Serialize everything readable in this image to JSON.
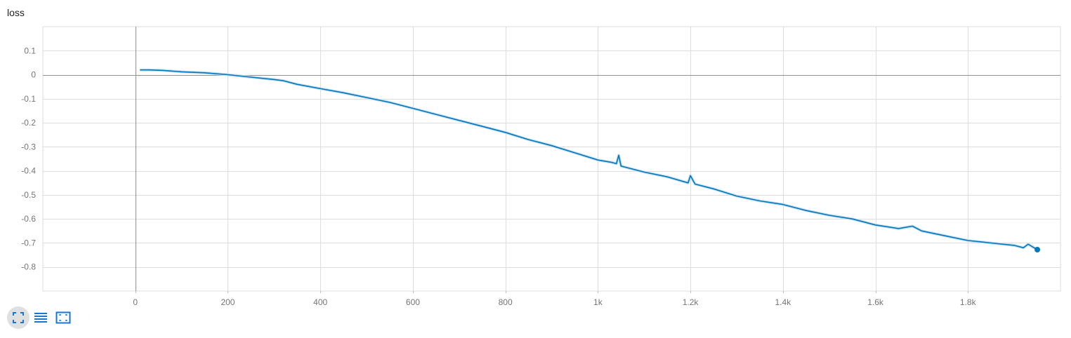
{
  "colors": {
    "line": "#0077bb",
    "line_raw": "#c6dff0",
    "grid": "#dddddd",
    "zero_axis": "#909090",
    "tick_text": "#757575",
    "toolbar_icon": "#1976d2"
  },
  "toolbar": {
    "icons": [
      "fit-domain-icon",
      "log-scale-icon",
      "selection-zoom-icon"
    ]
  },
  "chart_data": {
    "type": "line",
    "title": "loss",
    "xlabel": "",
    "ylabel": "",
    "xlim": [
      -200,
      2000
    ],
    "ylim": [
      -0.9,
      0.2
    ],
    "grid": true,
    "x_ticks": [
      0,
      200,
      400,
      600,
      800,
      1000,
      1200,
      1400,
      1600,
      1800
    ],
    "x_tick_labels": [
      "0",
      "200",
      "400",
      "600",
      "800",
      "1k",
      "1.2k",
      "1.4k",
      "1.6k",
      "1.8k"
    ],
    "y_ticks": [
      0.1,
      0,
      -0.1,
      -0.2,
      -0.3,
      -0.4,
      -0.5,
      -0.6,
      -0.7,
      -0.8
    ],
    "y_tick_labels": [
      "0.1",
      "0",
      "-0.1",
      "-0.2",
      "-0.3",
      "-0.4",
      "-0.5",
      "-0.6",
      "-0.7",
      "-0.8"
    ],
    "series": [
      {
        "x": [
          10,
          30,
          60,
          100,
          150,
          200,
          250,
          300,
          320,
          350,
          400,
          450,
          500,
          550,
          600,
          650,
          700,
          750,
          800,
          850,
          880,
          900,
          950,
          1000,
          1030,
          1040,
          1045,
          1050,
          1100,
          1150,
          1195,
          1200,
          1210,
          1250,
          1300,
          1350,
          1400,
          1450,
          1500,
          1550,
          1600,
          1650,
          1680,
          1700,
          1750,
          1800,
          1850,
          1900,
          1920,
          1930,
          1950
        ],
        "y": [
          0.02,
          0.02,
          0.018,
          0.012,
          0.008,
          0.0,
          -0.01,
          -0.02,
          -0.025,
          -0.04,
          -0.058,
          -0.075,
          -0.095,
          -0.115,
          -0.14,
          -0.165,
          -0.19,
          -0.215,
          -0.24,
          -0.27,
          -0.285,
          -0.295,
          -0.325,
          -0.355,
          -0.365,
          -0.37,
          -0.335,
          -0.38,
          -0.405,
          -0.425,
          -0.45,
          -0.42,
          -0.455,
          -0.475,
          -0.505,
          -0.525,
          -0.54,
          -0.565,
          -0.585,
          -0.6,
          -0.625,
          -0.64,
          -0.63,
          -0.65,
          -0.67,
          -0.69,
          -0.7,
          -0.71,
          -0.72,
          -0.705,
          -0.728
        ]
      }
    ]
  }
}
